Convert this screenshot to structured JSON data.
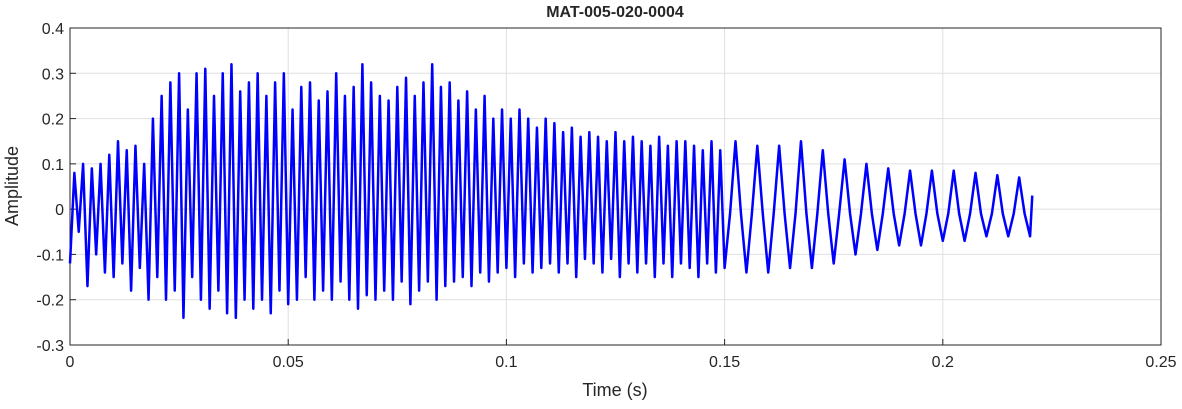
{
  "chart_data": {
    "type": "line",
    "title": "MAT-005-020-0004",
    "xlabel": "Time (s)",
    "ylabel": "Amplitude",
    "xlim": [
      0,
      0.25
    ],
    "xticks": [
      0,
      0.05,
      0.1,
      0.15,
      0.2,
      0.25
    ],
    "ylim": [
      -0.3,
      0.4
    ],
    "yticks": [
      -0.3,
      -0.2,
      -0.1,
      0,
      0.1,
      0.2,
      0.3,
      0.4
    ],
    "grid": true,
    "x": [
      0,
      0.001,
      0.002,
      0.003,
      0.004,
      0.005,
      0.006,
      0.007,
      0.008,
      0.009,
      0.01,
      0.011,
      0.012,
      0.013,
      0.014,
      0.015,
      0.016,
      0.017,
      0.018,
      0.019,
      0.02,
      0.021,
      0.022,
      0.023,
      0.024,
      0.025,
      0.026,
      0.027,
      0.028,
      0.029,
      0.03,
      0.031,
      0.032,
      0.033,
      0.034,
      0.035,
      0.036,
      0.037,
      0.038,
      0.039,
      0.04,
      0.041,
      0.042,
      0.043,
      0.044,
      0.045,
      0.046,
      0.047,
      0.048,
      0.049,
      0.05,
      0.051,
      0.052,
      0.053,
      0.054,
      0.055,
      0.056,
      0.057,
      0.058,
      0.059,
      0.06,
      0.061,
      0.062,
      0.063,
      0.064,
      0.065,
      0.066,
      0.067,
      0.068,
      0.069,
      0.07,
      0.071,
      0.072,
      0.073,
      0.074,
      0.075,
      0.076,
      0.077,
      0.078,
      0.079,
      0.08,
      0.081,
      0.082,
      0.083,
      0.084,
      0.085,
      0.086,
      0.087,
      0.088,
      0.089,
      0.09,
      0.091,
      0.092,
      0.093,
      0.094,
      0.095,
      0.096,
      0.097,
      0.098,
      0.099,
      0.1,
      0.101,
      0.102,
      0.103,
      0.104,
      0.105,
      0.106,
      0.107,
      0.108,
      0.109,
      0.11,
      0.111,
      0.112,
      0.113,
      0.114,
      0.115,
      0.116,
      0.117,
      0.118,
      0.119,
      0.12,
      0.121,
      0.122,
      0.123,
      0.124,
      0.125,
      0.126,
      0.127,
      0.128,
      0.129,
      0.13,
      0.131,
      0.132,
      0.133,
      0.134,
      0.135,
      0.136,
      0.137,
      0.138,
      0.139,
      0.14,
      0.141,
      0.142,
      0.143,
      0.144,
      0.145,
      0.146,
      0.147,
      0.148,
      0.149,
      0.15,
      0.15125,
      0.1525,
      0.15375,
      0.155,
      0.15625,
      0.1575,
      0.15875,
      0.16,
      0.16125,
      0.1625,
      0.16375,
      0.165,
      0.16625,
      0.1675,
      0.16875,
      0.17,
      0.17125,
      0.1725,
      0.17375,
      0.175,
      0.17625,
      0.1775,
      0.17875,
      0.18,
      0.18125,
      0.1825,
      0.18375,
      0.185,
      0.18625,
      0.1875,
      0.18875,
      0.19,
      0.19125,
      0.1925,
      0.19375,
      0.195,
      0.19625,
      0.1975,
      0.19875,
      0.2,
      0.20125,
      0.2025,
      0.20375,
      0.205,
      0.20625,
      0.2075,
      0.20875,
      0.21,
      0.21125,
      0.2125,
      0.21375,
      0.215,
      0.21625,
      0.2175,
      0.21875,
      0.22,
      0.2205
    ],
    "series": [
      {
        "name": "Amplitude",
        "color": "#0000ff",
        "values": [
          -0.12,
          0.08,
          -0.05,
          0.1,
          -0.17,
          0.09,
          -0.1,
          0.1,
          -0.14,
          0.12,
          -0.15,
          0.15,
          -0.12,
          0.13,
          -0.18,
          0.14,
          -0.13,
          0.1,
          -0.2,
          0.2,
          -0.15,
          0.25,
          -0.2,
          0.28,
          -0.18,
          0.3,
          -0.24,
          0.22,
          -0.15,
          0.3,
          -0.2,
          0.31,
          -0.22,
          0.25,
          -0.18,
          0.3,
          -0.23,
          0.32,
          -0.24,
          0.26,
          -0.2,
          0.28,
          -0.22,
          0.3,
          -0.2,
          0.25,
          -0.23,
          0.28,
          -0.18,
          0.3,
          -0.21,
          0.22,
          -0.2,
          0.27,
          -0.15,
          0.28,
          -0.2,
          0.24,
          -0.18,
          0.26,
          -0.2,
          0.3,
          -0.16,
          0.25,
          -0.2,
          0.27,
          -0.22,
          0.32,
          -0.19,
          0.28,
          -0.2,
          0.25,
          -0.18,
          0.24,
          -0.2,
          0.27,
          -0.16,
          0.29,
          -0.21,
          0.25,
          -0.18,
          0.28,
          -0.16,
          0.32,
          -0.2,
          0.27,
          -0.17,
          0.28,
          -0.16,
          0.24,
          -0.15,
          0.26,
          -0.17,
          0.22,
          -0.14,
          0.25,
          -0.16,
          0.2,
          -0.14,
          0.22,
          -0.13,
          0.2,
          -0.15,
          0.22,
          -0.12,
          0.2,
          -0.14,
          0.18,
          -0.13,
          0.2,
          -0.12,
          0.19,
          -0.14,
          0.17,
          -0.12,
          0.18,
          -0.15,
          0.16,
          -0.11,
          0.17,
          -0.12,
          0.16,
          -0.14,
          0.15,
          -0.11,
          0.17,
          -0.15,
          0.15,
          -0.12,
          0.16,
          -0.14,
          0.15,
          -0.12,
          0.14,
          -0.15,
          0.16,
          -0.12,
          0.14,
          -0.15,
          0.15,
          -0.12,
          0.15,
          -0.13,
          0.14,
          -0.15,
          0.13,
          -0.12,
          0.15,
          -0.14,
          0.13,
          -0.13,
          -0.01,
          0.15,
          -0.01,
          -0.14,
          -0.01,
          0.14,
          -0.01,
          -0.14,
          -0.01,
          0.14,
          -0.01,
          -0.13,
          -0.01,
          0.15,
          -0.01,
          -0.13,
          -0.01,
          0.13,
          -0.01,
          -0.12,
          -0.01,
          0.11,
          -0.01,
          -0.1,
          -0.01,
          0.1,
          -0.01,
          -0.09,
          -0.01,
          0.09,
          -0.01,
          -0.08,
          -0.01,
          0.085,
          -0.01,
          -0.08,
          -0.01,
          0.085,
          -0.01,
          -0.07,
          -0.01,
          0.085,
          -0.01,
          -0.07,
          -0.01,
          0.08,
          -0.01,
          -0.06,
          -0.01,
          0.075,
          -0.01,
          -0.06,
          -0.01,
          0.07,
          -0.01,
          -0.06,
          0.03
        ]
      }
    ]
  }
}
